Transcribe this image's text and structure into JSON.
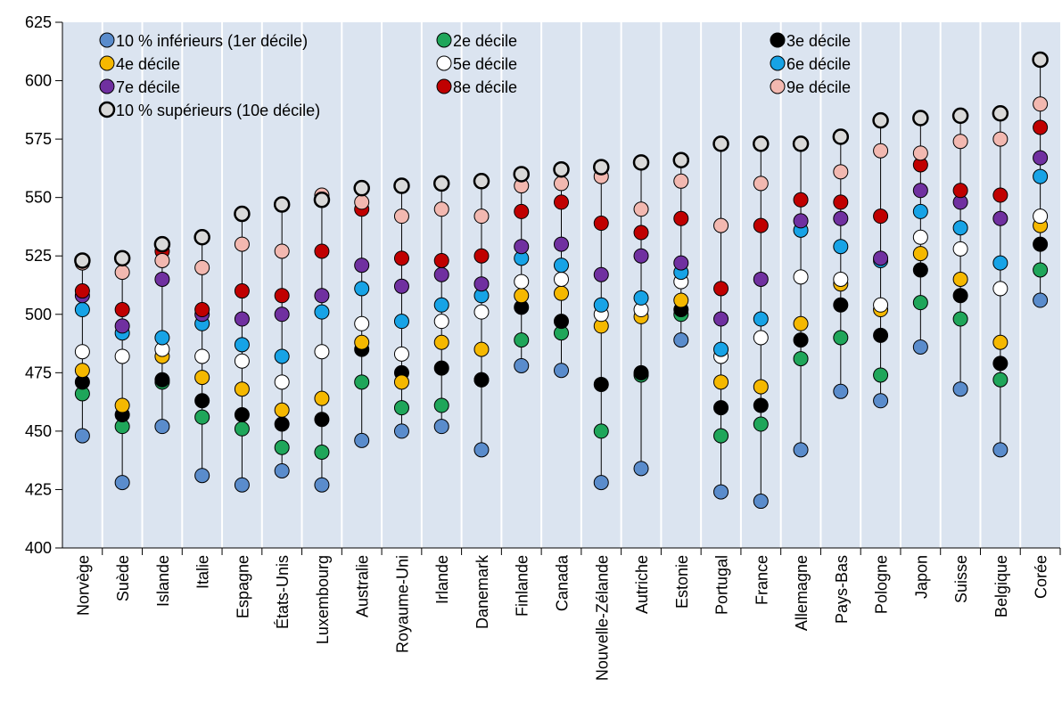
{
  "chart_data": {
    "type": "dot-range",
    "categories": [
      "Norvège",
      "Suède",
      "Islande",
      "Italie",
      "Espagne",
      "États-Unis",
      "Luxembourg",
      "Australie",
      "Royaume-Uni",
      "Irlande",
      "Danemark",
      "Finlande",
      "Canada",
      "Nouvelle-Zélande",
      "Autriche",
      "Estonie",
      "Portugal",
      "France",
      "Allemagne",
      "Pays-Bas",
      "Pologne",
      "Japon",
      "Suisse",
      "Belgique",
      "Corée"
    ],
    "highlight": {
      "index": 17,
      "color": "#ff0000"
    },
    "ylim": [
      400,
      625
    ],
    "yticks": [
      400,
      425,
      450,
      475,
      500,
      525,
      550,
      575,
      600,
      625
    ],
    "background": "#dbe4f0",
    "series": [
      {
        "name": "10 % inférieurs (1er décile)",
        "color": "#5a8ccc",
        "values": [
          448,
          428,
          452,
          431,
          427,
          433,
          427,
          446,
          450,
          452,
          442,
          478,
          476,
          428,
          434,
          489,
          424,
          420,
          442,
          467,
          463,
          486,
          468,
          442,
          506
        ]
      },
      {
        "name": "2e décile",
        "color": "#1fa65a",
        "values": [
          466,
          452,
          471,
          456,
          451,
          443,
          441,
          471,
          460,
          461,
          472,
          489,
          492,
          450,
          474,
          500,
          448,
          453,
          481,
          490,
          474,
          505,
          498,
          472,
          519
        ]
      },
      {
        "name": "3e décile",
        "color": "#000000",
        "values": [
          471,
          457,
          472,
          463,
          457,
          453,
          455,
          485,
          475,
          477,
          472,
          503,
          497,
          470,
          475,
          502,
          460,
          461,
          489,
          504,
          491,
          519,
          508,
          479,
          530
        ]
      },
      {
        "name": "4e décile",
        "color": "#f5b800",
        "values": [
          476,
          461,
          482,
          473,
          468,
          459,
          464,
          488,
          471,
          488,
          485,
          508,
          509,
          495,
          499,
          506,
          471,
          469,
          496,
          513,
          502,
          526,
          515,
          488,
          538
        ]
      },
      {
        "name": "5e décile",
        "color": "#ffffff",
        "values": [
          484,
          482,
          485,
          482,
          480,
          471,
          484,
          496,
          483,
          497,
          501,
          514,
          515,
          500,
          502,
          514,
          482,
          490,
          516,
          515,
          504,
          533,
          528,
          511,
          542
        ]
      },
      {
        "name": "6e décile",
        "color": "#17a3e6",
        "values": [
          502,
          492,
          490,
          496,
          487,
          482,
          501,
          511,
          497,
          504,
          508,
          524,
          521,
          504,
          507,
          518,
          485,
          498,
          536,
          529,
          523,
          544,
          537,
          522,
          559
        ]
      },
      {
        "name": "7e décile",
        "color": "#7030a0",
        "values": [
          508,
          495,
          515,
          500,
          498,
          500,
          508,
          521,
          512,
          517,
          513,
          529,
          530,
          517,
          525,
          522,
          498,
          515,
          540,
          541,
          524,
          553,
          548,
          541,
          567
        ]
      },
      {
        "name": "8e décile",
        "color": "#c00000",
        "values": [
          510,
          502,
          527,
          502,
          510,
          508,
          527,
          545,
          524,
          523,
          525,
          544,
          548,
          539,
          535,
          541,
          511,
          538,
          549,
          548,
          542,
          564,
          553,
          551,
          580
        ]
      },
      {
        "name": "9e décile",
        "color": "#f2b8b0",
        "values": [
          522,
          518,
          523,
          520,
          530,
          527,
          551,
          548,
          542,
          545,
          542,
          555,
          556,
          559,
          545,
          557,
          538,
          556,
          573,
          561,
          570,
          569,
          574,
          575,
          590
        ]
      },
      {
        "name": "10 % supérieurs (10e décile)",
        "color": "#d9d9d9",
        "values": [
          523,
          524,
          530,
          533,
          543,
          547,
          549,
          554,
          555,
          556,
          557,
          560,
          562,
          563,
          565,
          566,
          573,
          573,
          573,
          576,
          583,
          584,
          585,
          586,
          609
        ]
      }
    ]
  }
}
